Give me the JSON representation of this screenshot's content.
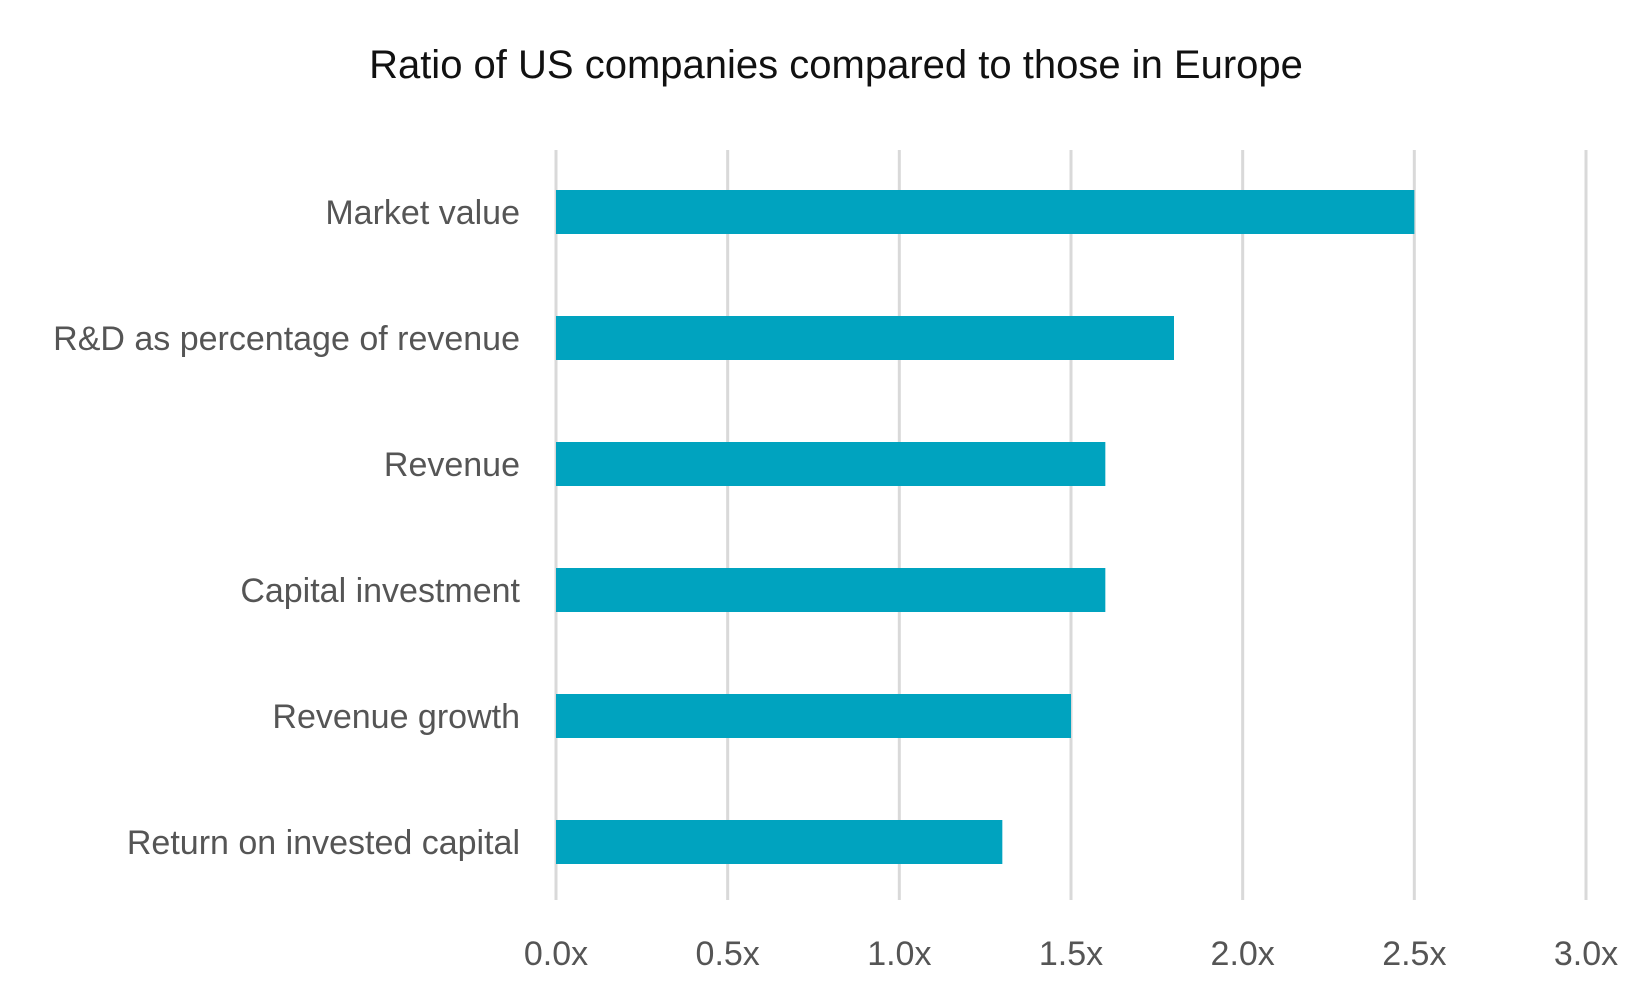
{
  "chart_data": {
    "type": "bar",
    "orientation": "horizontal",
    "title": "Ratio of US companies compared to those in Europe",
    "xlabel": "",
    "ylabel": "",
    "categories": [
      "Market value",
      "R&D as percentage of revenue",
      "Revenue",
      "Capital investment",
      "Revenue growth",
      "Return on invested capital"
    ],
    "values": [
      2.5,
      1.8,
      1.6,
      1.6,
      1.5,
      1.3
    ],
    "xlim": [
      0,
      3.0
    ],
    "xticks": [
      0,
      0.5,
      1.0,
      1.5,
      2.0,
      2.5,
      3.0
    ],
    "xtick_labels": [
      "0.0x",
      "0.5x",
      "1.0x",
      "1.5x",
      "2.0x",
      "2.5x",
      "3.0x"
    ],
    "grid": "vertical",
    "legend": "none",
    "bar_color": "#00A3BF",
    "grid_color": "#d9d9d9"
  }
}
